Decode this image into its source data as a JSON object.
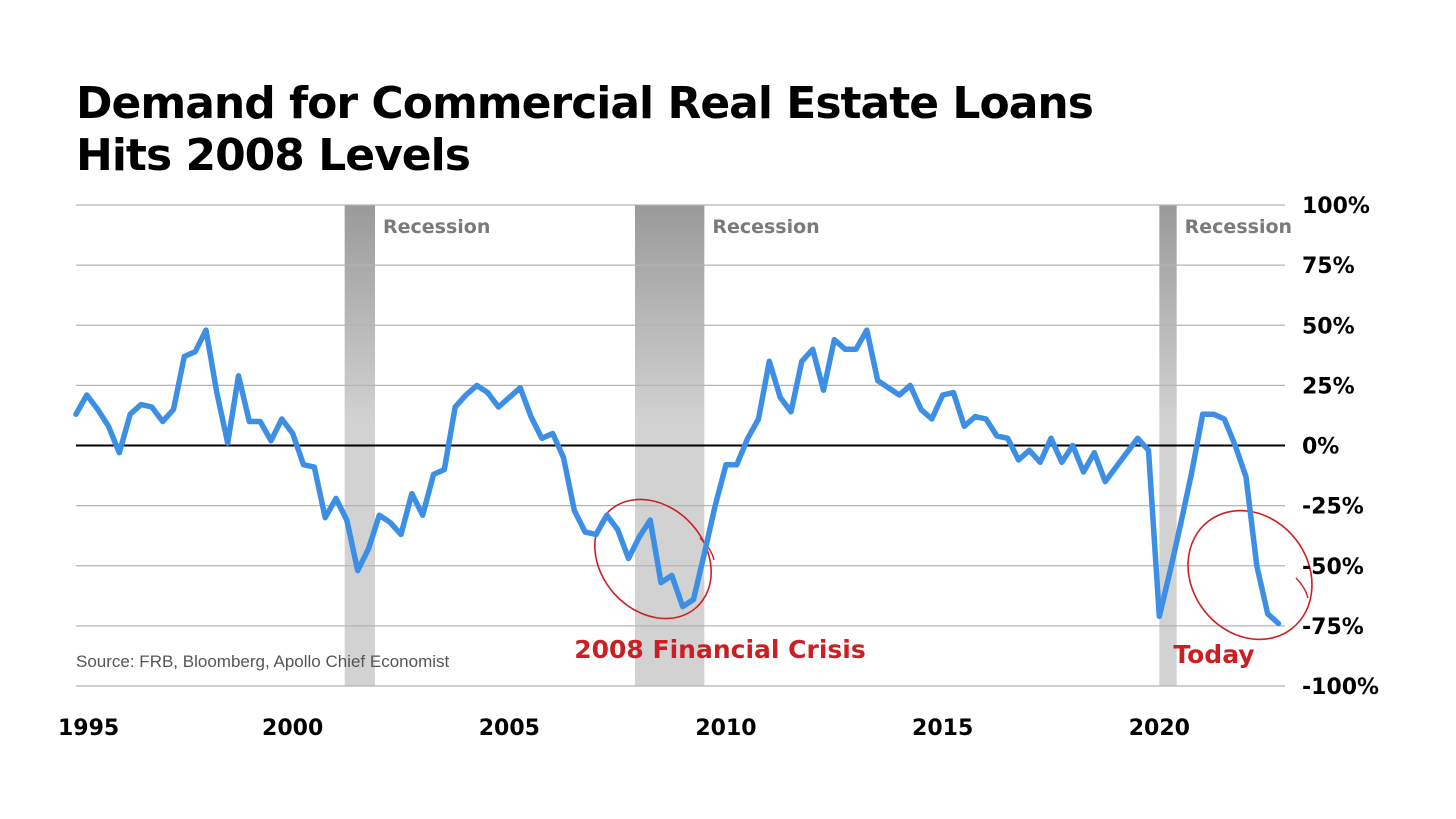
{
  "chart_data": {
    "type": "line",
    "title": "Demand for Commercial Real Estate Loans Hits 2008 Levels",
    "title_lines": [
      "Demand for Commercial Real Estate Loans",
      "Hits 2008 Levels"
    ],
    "xlabel": "",
    "ylabel": "",
    "xlim": [
      1995,
      2022.9
    ],
    "ylim": [
      -100,
      100
    ],
    "x_ticks": [
      "1995",
      "2000",
      "2005",
      "2010",
      "2015",
      "2020"
    ],
    "y_ticks": [
      "100%",
      "75%",
      "50%",
      "25%",
      "0%",
      "-25%",
      "-50%",
      "-75%",
      "-100%"
    ],
    "grid": true,
    "legend": "none",
    "colors": {
      "line": "#3d8fe6",
      "recession": "#cfcfcf",
      "zero_line": "#000000",
      "annotation": "#cc1f24"
    },
    "recessions": [
      {
        "label": "Recession",
        "start": 2001.2,
        "end": 2001.9
      },
      {
        "label": "Recession",
        "start": 2007.9,
        "end": 2009.5
      },
      {
        "label": "Recession",
        "start": 2020.0,
        "end": 2020.4
      }
    ],
    "annotations": [
      {
        "text": "2008 Financial Crisis",
        "x": 2009.0,
        "y": -85
      },
      {
        "text": "Today",
        "x": 2022.0,
        "y": -86
      }
    ],
    "source": "Source: FRB, Bloomberg, Apollo Chief Economist",
    "series": [
      {
        "x": [
          1995.0,
          1995.25,
          1995.5,
          1995.75,
          1996.0,
          1996.25,
          1996.5,
          1996.75,
          1997.0,
          1997.25,
          1997.5,
          1997.75,
          1998.0,
          1998.25,
          1998.5,
          1998.75,
          1999.0,
          1999.25,
          1999.5,
          1999.75,
          2000.0,
          2000.25,
          2000.5,
          2000.75,
          2001.0,
          2001.25,
          2001.5,
          2001.75,
          2002.0,
          2002.25,
          2002.5,
          2002.75,
          2003.0,
          2003.25,
          2003.5,
          2003.75,
          2004.0,
          2004.25,
          2004.5,
          2004.75,
          2005.0,
          2005.25,
          2005.5,
          2005.75,
          2006.0,
          2006.25,
          2006.5,
          2006.75,
          2007.0,
          2007.25,
          2007.5,
          2007.75,
          2008.0,
          2008.25,
          2008.5,
          2008.75,
          2009.0,
          2009.25,
          2009.5,
          2009.75,
          2010.0,
          2010.25,
          2010.5,
          2010.75,
          2011.0,
          2011.25,
          2011.5,
          2011.75,
          2012.0,
          2012.25,
          2012.5,
          2012.75,
          2013.0,
          2013.25,
          2013.5,
          2013.75,
          2014.0,
          2014.25,
          2014.5,
          2014.75,
          2015.0,
          2015.25,
          2015.5,
          2015.75,
          2016.0,
          2016.25,
          2016.5,
          2016.75,
          2017.0,
          2017.25,
          2017.5,
          2017.75,
          2018.0,
          2018.25,
          2018.5,
          2018.75,
          2019.0,
          2019.25,
          2019.5,
          2019.75,
          2020.0,
          2020.25,
          2020.5,
          2020.75,
          2021.0,
          2021.25,
          2021.5,
          2021.75,
          2022.0,
          2022.25,
          2022.5,
          2022.75
        ],
        "values": [
          13,
          21,
          15,
          8,
          -3,
          13,
          17,
          16,
          10,
          15,
          37,
          39,
          48,
          22,
          1,
          29,
          10,
          10,
          2,
          11,
          5,
          -8,
          -9,
          -30,
          -22,
          -31,
          -52,
          -43,
          -29,
          -32,
          -37,
          -20,
          -29,
          -12,
          -10,
          16,
          21,
          25,
          22,
          16,
          20,
          24,
          12,
          3,
          5,
          -5,
          -27,
          -36,
          -37,
          -29,
          -35,
          -47,
          -38,
          -31,
          -57,
          -54,
          -67,
          -64,
          -45,
          -25,
          -8,
          -8,
          3,
          11,
          35,
          20,
          14,
          35,
          40,
          23,
          44,
          40,
          40,
          48,
          27,
          24,
          21,
          25,
          15,
          11,
          21,
          22,
          8,
          12,
          11,
          4,
          3,
          -6,
          -2,
          -7,
          3,
          -7,
          0,
          -11,
          -3,
          -15,
          -9,
          -3,
          3,
          -2,
          -71,
          -52,
          -32,
          -11,
          13,
          13,
          11,
          0,
          -13,
          -50,
          -70,
          -74
        ]
      }
    ]
  }
}
